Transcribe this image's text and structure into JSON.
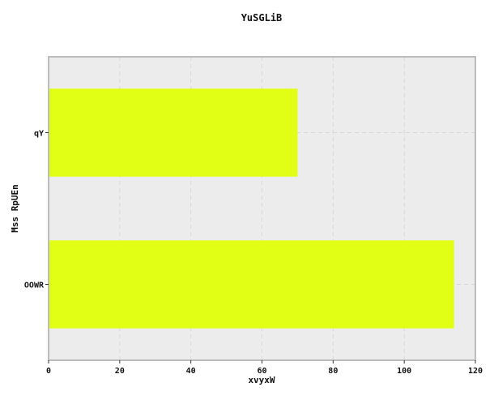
{
  "chart_data": {
    "type": "bar",
    "orientation": "horizontal",
    "title": "YuSGLiB",
    "xlabel": "xvyxW",
    "ylabel": "Mss RpUEn",
    "categories": [
      "OOWR",
      "qY"
    ],
    "values": [
      114,
      70
    ],
    "xlim": [
      0,
      120
    ],
    "xticks": [
      "0",
      "20",
      "40",
      "60",
      "80",
      "100",
      "120"
    ],
    "grid": true,
    "legend": "none"
  },
  "colors": {
    "bar": "#e1ff14",
    "plot_background": "#ececec",
    "grid": "#d8d8d8",
    "frame": "#bdbdbd",
    "text": "#111111"
  }
}
